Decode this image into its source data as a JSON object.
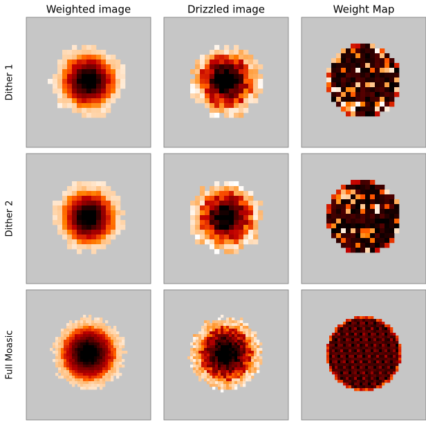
{
  "columns": [
    "Weighted image",
    "Drizzled image",
    "Weight Map"
  ],
  "rows": [
    "Dither 1",
    "Dither 2",
    "Full Moasic"
  ]
}
